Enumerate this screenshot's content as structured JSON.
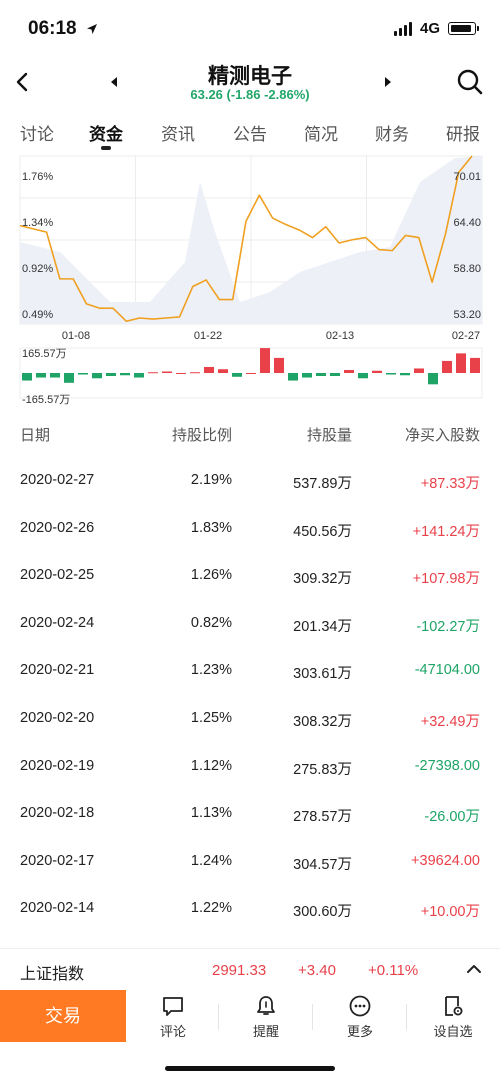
{
  "status_bar": {
    "time": "06:18",
    "network": "4G"
  },
  "header": {
    "stock_name": "精测电子",
    "quote": "63.26 (-1.86 -2.86%)"
  },
  "tabs": [
    {
      "label": "讨论"
    },
    {
      "label": "资金"
    },
    {
      "label": "资讯"
    },
    {
      "label": "公告"
    },
    {
      "label": "简况"
    },
    {
      "label": "财务"
    },
    {
      "label": "研报"
    }
  ],
  "active_tab": 1,
  "chart_data": [
    {
      "type": "line",
      "x_ticks": [
        "01-08",
        "01-22",
        "02-13",
        "02-27"
      ],
      "y_left_ticks": [
        "1.76%",
        "1.34%",
        "0.92%",
        "0.49%"
      ],
      "y_right_ticks": [
        "70.01",
        "64.40",
        "58.80",
        "53.20"
      ],
      "ylim": [
        0.49,
        1.76
      ],
      "series": [
        {
          "values": [
            1.34,
            1.31,
            1.28,
            0.85,
            0.85,
            0.62,
            0.58,
            0.58,
            0.46,
            0.49,
            0.48,
            0.49,
            0.5,
            0.78,
            0.84,
            0.66,
            0.66,
            1.38,
            1.62,
            1.41,
            1.35,
            1.3,
            1.23,
            1.33,
            1.18,
            1.21,
            1.23,
            1.12,
            1.11,
            1.25,
            1.23,
            0.82,
            1.26,
            1.83,
            2.19
          ]
        }
      ]
    },
    {
      "type": "bar",
      "y_ticks": [
        "165.57万",
        "-165.57万"
      ],
      "ylim": [
        -165.57,
        165.57
      ],
      "values": [
        -50,
        -30,
        -30,
        -65,
        -10,
        -35,
        -20,
        -15,
        -30,
        5,
        10,
        0,
        5,
        40,
        25,
        -25,
        0,
        165,
        100,
        -50,
        -30,
        -20,
        -20,
        20,
        -35,
        15,
        -10,
        -15,
        30,
        -75,
        80,
        130,
        100
      ]
    }
  ],
  "table": {
    "headers": [
      "日期",
      "持股比例",
      "持股量",
      "净买入股数"
    ],
    "rows": [
      {
        "date": "2020-02-27",
        "ratio": "2.19%",
        "shares": "537.89万",
        "net": "+87.33万",
        "dir": "up"
      },
      {
        "date": "2020-02-26",
        "ratio": "1.83%",
        "shares": "450.56万",
        "net": "+141.24万",
        "dir": "up"
      },
      {
        "date": "2020-02-25",
        "ratio": "1.26%",
        "shares": "309.32万",
        "net": "+107.98万",
        "dir": "up"
      },
      {
        "date": "2020-02-24",
        "ratio": "0.82%",
        "shares": "201.34万",
        "net": "-102.27万",
        "dir": "down"
      },
      {
        "date": "2020-02-21",
        "ratio": "1.23%",
        "shares": "303.61万",
        "net": "-47104.00",
        "dir": "down"
      },
      {
        "date": "2020-02-20",
        "ratio": "1.25%",
        "shares": "308.32万",
        "net": "+32.49万",
        "dir": "up"
      },
      {
        "date": "2020-02-19",
        "ratio": "1.12%",
        "shares": "275.83万",
        "net": "-27398.00",
        "dir": "down"
      },
      {
        "date": "2020-02-18",
        "ratio": "1.13%",
        "shares": "278.57万",
        "net": "-26.00万",
        "dir": "down"
      },
      {
        "date": "2020-02-17",
        "ratio": "1.24%",
        "shares": "304.57万",
        "net": "+39624.00",
        "dir": "up"
      },
      {
        "date": "2020-02-14",
        "ratio": "1.22%",
        "shares": "300.60万",
        "net": "+10.00万",
        "dir": "up"
      }
    ]
  },
  "index_bar": {
    "name": "上证指数",
    "value": "2991.33",
    "change": "+3.40",
    "pct": "+0.11%"
  },
  "bottom_bar": {
    "trade": "交易",
    "items": [
      {
        "label": "评论",
        "icon": "comment-icon"
      },
      {
        "label": "提醒",
        "icon": "bell-icon"
      },
      {
        "label": "更多",
        "icon": "more-icon"
      },
      {
        "label": "设自选",
        "icon": "watchlist-settings-icon"
      }
    ]
  },
  "colors": {
    "up": "#e8414a",
    "down": "#1ea466",
    "line": "#f0a020",
    "accent": "#ff7a22"
  }
}
